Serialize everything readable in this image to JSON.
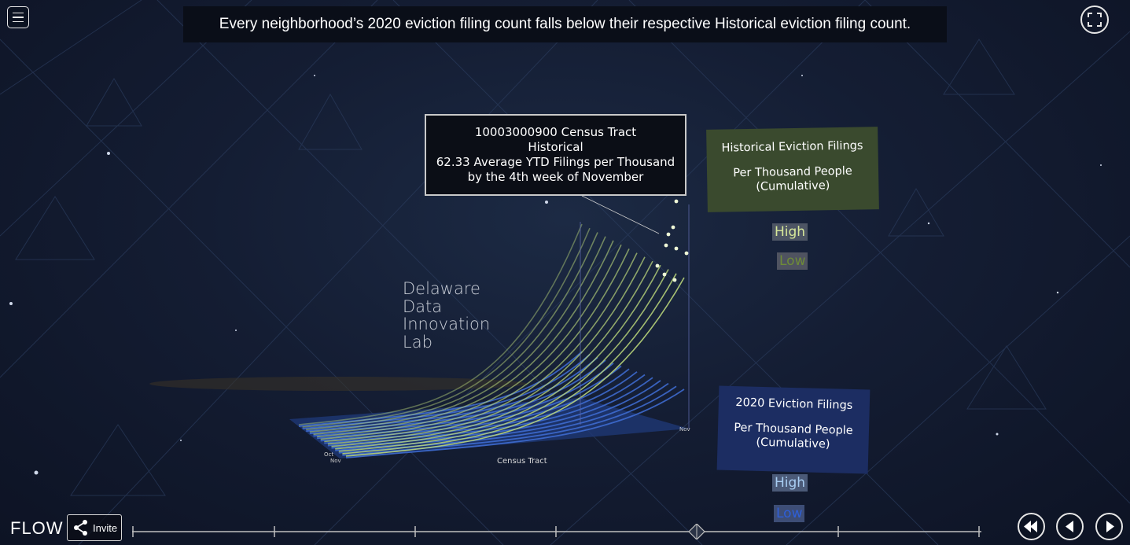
{
  "banner": {
    "text": "Every neighborhood’s 2020 eviction filing count falls below their respective Historical eviction filing count."
  },
  "tooltip": {
    "line1": "10003000900  Census Tract",
    "line2": "Historical",
    "line3": "62.33 Average YTD Filings per Thousand",
    "line4": "by the 4th week of November"
  },
  "legend_historical": {
    "title": "Historical Eviction Filings",
    "subtitle_line1": "Per Thousand People",
    "subtitle_line2": "(Cumulative)",
    "high_label": "High",
    "low_label": "Low",
    "color": "#3a4a2e"
  },
  "legend_2020": {
    "title": "2020 Eviction Filings",
    "subtitle_line1": "Per Thousand People",
    "subtitle_line2": "(Cumulative)",
    "high_label": "High",
    "low_label": "Low",
    "color": "#1c2d62"
  },
  "brand": {
    "line1": "Delaware",
    "line2": "Data",
    "line3": "Innovation",
    "line4": "Lab"
  },
  "chart": {
    "axis_label": "Census Tract",
    "month_labels": [
      "Oct",
      "Nov"
    ],
    "historical_color": "#b8d47a",
    "c2020_color": "#3f6fd6"
  },
  "footer": {
    "logo": "FLOW",
    "invite_label": "Invite"
  },
  "icons": {
    "menu": "hamburger-icon",
    "fullscreen": "fullscreen-icon",
    "share": "share-icon",
    "restart": "rewind-icon",
    "prev": "previous-icon",
    "next": "next-icon"
  }
}
